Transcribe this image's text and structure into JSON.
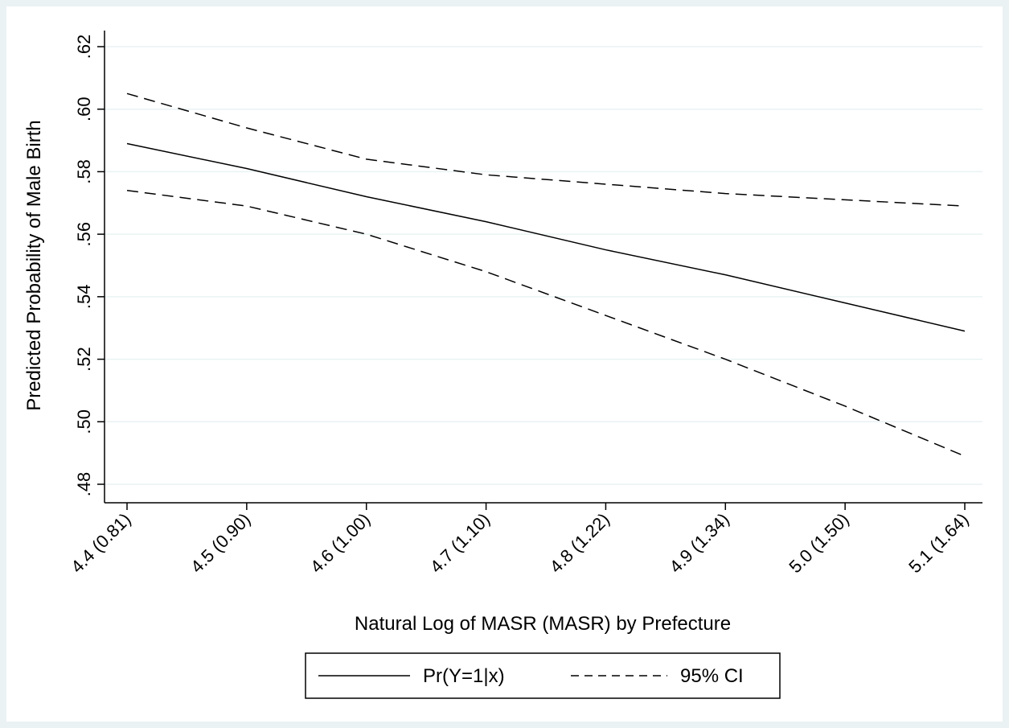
{
  "chart_data": {
    "type": "line",
    "xlabel": "Natural Log of MASR (MASR) by Prefecture",
    "ylabel": "Predicted Probability of Male Birth",
    "x": [
      4.4,
      4.5,
      4.6,
      4.7,
      4.8,
      4.9,
      5.0,
      5.1
    ],
    "x_tick_labels": [
      "4.4 (0.81)",
      "4.5 (0.90)",
      "4.6 (1.00)",
      "4.7 (1.10)",
      "4.8 (1.22)",
      "4.9 (1.34)",
      "5.0 (1.50)",
      "5.1 (1.64)"
    ],
    "y_ticks": [
      0.48,
      0.5,
      0.52,
      0.54,
      0.56,
      0.58,
      0.6,
      0.62
    ],
    "y_tick_labels": [
      ".48",
      ".50",
      ".52",
      ".54",
      ".56",
      ".58",
      ".60",
      ".62"
    ],
    "xlim": [
      4.38,
      5.1
    ],
    "ylim": [
      0.476,
      0.625
    ],
    "grid": true,
    "legend_position": "bottom",
    "series": [
      {
        "name": "Pr(Y=1|x)",
        "style": "solid",
        "color": "#000000",
        "values": [
          0.589,
          0.581,
          0.572,
          0.564,
          0.555,
          0.547,
          0.538,
          0.529
        ]
      },
      {
        "name": "95% CI",
        "style": "dashed",
        "color": "#000000",
        "values": [
          0.605,
          0.594,
          0.584,
          0.579,
          0.576,
          0.573,
          0.571,
          0.569
        ]
      },
      {
        "name": "",
        "style": "dashed",
        "color": "#000000",
        "values": [
          0.574,
          0.569,
          0.56,
          0.548,
          0.534,
          0.52,
          0.505,
          0.489
        ]
      }
    ]
  },
  "colors": {
    "frame_background": "#eaf2f3",
    "plot_background": "#ffffff",
    "grid": "#eaf2f3",
    "ink": "#000000"
  }
}
